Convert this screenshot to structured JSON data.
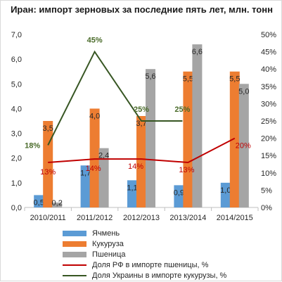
{
  "chart_data": {
    "type": "bar",
    "title": "Иран: импорт зерновых за последние пять лет, млн. тонн",
    "categories": [
      "2010/2011",
      "2011/2012",
      "2012/2013",
      "2013/2014",
      "2014/2015"
    ],
    "ylim": [
      0,
      7
    ],
    "y2lim": [
      0,
      50
    ],
    "yticks": [
      "0,0",
      "1,0",
      "2,0",
      "3,0",
      "4,0",
      "5,0",
      "6,0",
      "7,0"
    ],
    "y2ticks": [
      "0%",
      "5%",
      "10%",
      "15%",
      "20%",
      "25%",
      "30%",
      "35%",
      "40%",
      "45%",
      "50%"
    ],
    "grid": false,
    "legend_position": "bottom",
    "series": [
      {
        "name": "Ячмень",
        "type": "bar",
        "color": "#5b9bd5",
        "values": [
          0.5,
          1.7,
          1.1,
          0.9,
          1.0
        ],
        "labels": [
          "0,5",
          "1,7",
          "1,1",
          "0,9",
          "1,0"
        ]
      },
      {
        "name": "Кукуруза",
        "type": "bar",
        "color": "#ed7d31",
        "values": [
          3.5,
          4.0,
          3.7,
          5.5,
          5.5
        ],
        "labels": [
          "3,5",
          "4,0",
          "3,7",
          "5,5",
          "5,5"
        ]
      },
      {
        "name": "Пшеница",
        "type": "bar",
        "color": "#a5a5a5",
        "values": [
          0.2,
          2.4,
          5.6,
          6.6,
          5.0
        ],
        "labels": [
          "0,2",
          "2,4",
          "5,6",
          "6,6",
          "5,0"
        ]
      },
      {
        "name": "Доля РФ в импорте пшеницы, %",
        "type": "line",
        "axis": "right",
        "color": "#c00000",
        "values": [
          13,
          14,
          14,
          13,
          20
        ],
        "labels": [
          "13%",
          "14%",
          "14%",
          "13%",
          "20%"
        ]
      },
      {
        "name": "Доля Украины в импорте кукурузы, %",
        "type": "line",
        "axis": "right",
        "color": "#375623",
        "values": [
          18,
          45,
          25,
          25,
          null
        ],
        "labels": [
          "18%",
          "45%",
          "25%",
          "25%",
          ""
        ]
      }
    ]
  }
}
